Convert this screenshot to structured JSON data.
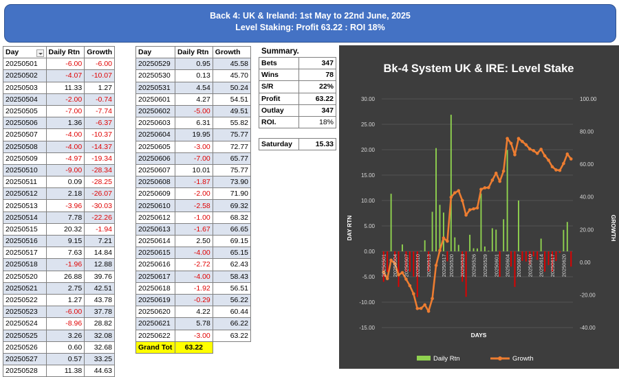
{
  "header": {
    "line1": "Back 4: UK & Ireland: 1st May to 22nd June, 2025",
    "line2": "Level Staking: Profit 63.22 : ROI 18%"
  },
  "table_left": {
    "headers": [
      "Day",
      "Daily Rtn",
      "Growth"
    ],
    "rows": [
      [
        "20250501",
        "-6.00",
        "-6.00"
      ],
      [
        "20250502",
        "-4.07",
        "-10.07"
      ],
      [
        "20250503",
        "11.33",
        "1.27"
      ],
      [
        "20250504",
        "-2.00",
        "-0.74"
      ],
      [
        "20250505",
        "-7.00",
        "-7.74"
      ],
      [
        "20250506",
        "1.36",
        "-6.37"
      ],
      [
        "20250507",
        "-4.00",
        "-10.37"
      ],
      [
        "20250508",
        "-4.00",
        "-14.37"
      ],
      [
        "20250509",
        "-4.97",
        "-19.34"
      ],
      [
        "20250510",
        "-9.00",
        "-28.34"
      ],
      [
        "20250511",
        "0.09",
        "-28.25"
      ],
      [
        "20250512",
        "2.18",
        "-26.07"
      ],
      [
        "20250513",
        "-3.96",
        "-30.03"
      ],
      [
        "20250514",
        "7.78",
        "-22.26"
      ],
      [
        "20250515",
        "20.32",
        "-1.94"
      ],
      [
        "20250516",
        "9.15",
        "7.21"
      ],
      [
        "20250517",
        "7.63",
        "14.84"
      ],
      [
        "20250518",
        "-1.96",
        "12.88"
      ],
      [
        "20250520",
        "26.88",
        "39.76"
      ],
      [
        "20250521",
        "2.75",
        "42.51"
      ],
      [
        "20250522",
        "1.27",
        "43.78"
      ],
      [
        "20250523",
        "-6.00",
        "37.78"
      ],
      [
        "20250524",
        "-8.96",
        "28.82"
      ],
      [
        "20250525",
        "3.26",
        "32.08"
      ],
      [
        "20250526",
        "0.60",
        "32.68"
      ],
      [
        "20250527",
        "0.57",
        "33.25"
      ],
      [
        "20250528",
        "11.38",
        "44.63"
      ]
    ]
  },
  "table_right": {
    "headers": [
      "Day",
      "Daily Rtn",
      "Growth"
    ],
    "rows": [
      [
        "20250529",
        "0.95",
        "45.58"
      ],
      [
        "20250530",
        "0.13",
        "45.70"
      ],
      [
        "20250531",
        "4.54",
        "50.24"
      ],
      [
        "20250601",
        "4.27",
        "54.51"
      ],
      [
        "20250602",
        "-5.00",
        "49.51"
      ],
      [
        "20250603",
        "6.31",
        "55.82"
      ],
      [
        "20250604",
        "19.95",
        "75.77"
      ],
      [
        "20250605",
        "-3.00",
        "72.77"
      ],
      [
        "20250606",
        "-7.00",
        "65.77"
      ],
      [
        "20250607",
        "10.01",
        "75.77"
      ],
      [
        "20250608",
        "-1.87",
        "73.90"
      ],
      [
        "20250609",
        "-2.00",
        "71.90"
      ],
      [
        "20250610",
        "-2.58",
        "69.32"
      ],
      [
        "20250612",
        "-1.00",
        "68.32"
      ],
      [
        "20250613",
        "-1.67",
        "66.65"
      ],
      [
        "20250614",
        "2.50",
        "69.15"
      ],
      [
        "20250615",
        "-4.00",
        "65.15"
      ],
      [
        "20250616",
        "-2.72",
        "62.43"
      ],
      [
        "20250617",
        "-4.00",
        "58.43"
      ],
      [
        "20250618",
        "-1.92",
        "56.51"
      ],
      [
        "20250619",
        "-0.29",
        "56.22"
      ],
      [
        "20250620",
        "4.22",
        "60.44"
      ],
      [
        "20250621",
        "5.78",
        "66.22"
      ],
      [
        "20250622",
        "-3.00",
        "63.22"
      ]
    ],
    "grand_total_label": "Grand Tot",
    "grand_total_value": "63.22"
  },
  "summary": {
    "title": "Summary.",
    "rows": [
      [
        "Bets",
        "347"
      ],
      [
        "Wins",
        "78"
      ],
      [
        "S/R",
        "22%"
      ],
      [
        "Profit",
        "63.22"
      ],
      [
        "Outlay",
        "347"
      ],
      [
        "ROI.",
        "18%"
      ]
    ],
    "saturday_label": "Saturday",
    "saturday_value": "15.33"
  },
  "colors": {
    "header_bg": "#4472c4",
    "row_shade": "#dce3ef",
    "negative": "#e00000",
    "grand_total_bg": "#ffff00",
    "chart_bg": "#3d3d3d",
    "bar_positive": "#8fd14f",
    "bar_negative": "#e00000",
    "growth_line": "#ed7d31"
  },
  "chart_data": {
    "type": "bar",
    "title": "Bk-4 System UK & IRE: Level Stake",
    "xlabel": "DAYS",
    "ylabel": "DAY RTN",
    "y2label": "GROWTH",
    "ylim": [
      -15,
      30
    ],
    "y2lim": [
      -40,
      100
    ],
    "yticks": [
      "-15.00",
      "-10.00",
      "-5.00",
      "0.00",
      "5.00",
      "10.00",
      "15.00",
      "20.00",
      "25.00",
      "30.00"
    ],
    "y2ticks": [
      "-40.00",
      "-20.00",
      "0.00",
      "20.00",
      "40.00",
      "60.00",
      "80.00",
      "100.00"
    ],
    "xtick_labels": [
      "20250501",
      "20250504",
      "20250507",
      "20250510",
      "20250513",
      "20250517",
      "20250520",
      "20250523",
      "20250526",
      "20250529",
      "20250601",
      "20250604",
      "20250607",
      "20250610",
      "20250614",
      "20250617",
      "20250620"
    ],
    "legend_position": "bottom",
    "grid": true,
    "series": [
      {
        "name": "Daily Rtn",
        "type": "bar",
        "axis": "left",
        "values": [
          -6.0,
          -4.07,
          11.33,
          -2.0,
          -7.0,
          1.36,
          -4.0,
          -4.0,
          -4.97,
          -9.0,
          0.09,
          2.18,
          -3.96,
          7.78,
          20.32,
          9.15,
          7.63,
          -1.96,
          26.88,
          2.75,
          1.27,
          -6.0,
          -8.96,
          3.26,
          0.6,
          0.57,
          11.38,
          0.95,
          0.13,
          4.54,
          4.27,
          -5.0,
          6.31,
          19.95,
          -3.0,
          -7.0,
          10.01,
          -1.87,
          -2.0,
          -2.58,
          -1.0,
          -1.67,
          2.5,
          -4.0,
          -2.72,
          -4.0,
          -1.92,
          -0.29,
          4.22,
          5.78,
          -3.0
        ]
      },
      {
        "name": "Growth",
        "type": "line",
        "axis": "right",
        "values": [
          -6.0,
          -10.07,
          1.27,
          -0.74,
          -7.74,
          -6.37,
          -10.37,
          -14.37,
          -19.34,
          -28.34,
          -28.25,
          -26.07,
          -30.03,
          -22.26,
          -1.94,
          7.21,
          14.84,
          12.88,
          39.76,
          42.51,
          43.78,
          37.78,
          28.82,
          32.08,
          32.68,
          33.25,
          44.63,
          45.58,
          45.7,
          50.24,
          54.51,
          49.51,
          55.82,
          75.77,
          72.77,
          65.77,
          75.77,
          73.9,
          71.9,
          69.32,
          68.32,
          66.65,
          69.15,
          65.15,
          62.43,
          58.43,
          56.51,
          56.22,
          60.44,
          66.22,
          63.22
        ]
      }
    ]
  }
}
